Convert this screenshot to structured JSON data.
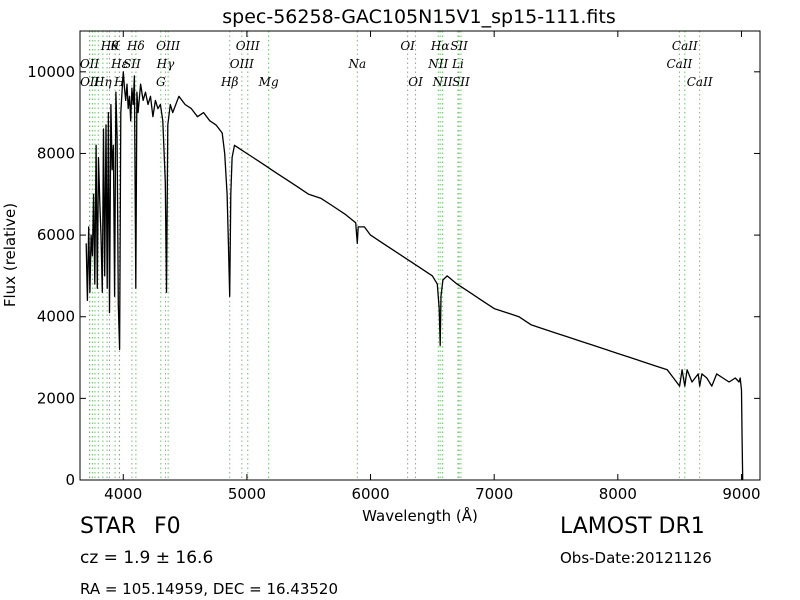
{
  "chart_data": {
    "type": "line",
    "title": "spec-56258-GAC105N15V1_sp15-111.fits",
    "xlabel": "Wavelength (Å)",
    "ylabel": "Flux (relative)",
    "xlim": [
      3650,
      9150
    ],
    "ylim": [
      0,
      11000
    ],
    "xticks": [
      4000,
      5000,
      6000,
      7000,
      8000,
      9000
    ],
    "yticks": [
      0,
      2000,
      4000,
      6000,
      8000,
      10000
    ],
    "grid": false,
    "series": [
      {
        "x": [
          3700,
          3710,
          3720,
          3730,
          3740,
          3750,
          3760,
          3770,
          3780,
          3790,
          3800,
          3810,
          3820,
          3830,
          3840,
          3850,
          3860,
          3870,
          3880,
          3889,
          3900,
          3910,
          3920,
          3930,
          3940,
          3950,
          3960,
          3970,
          3980,
          3990,
          4000,
          4010,
          4020,
          4030,
          4040,
          4050,
          4060,
          4070,
          4080,
          4090,
          4101,
          4110,
          4120,
          4140,
          4160,
          4180,
          4200,
          4220,
          4240,
          4260,
          4280,
          4300,
          4320,
          4340,
          4350,
          4360,
          4380,
          4400,
          4450,
          4500,
          4550,
          4600,
          4650,
          4700,
          4750,
          4800,
          4820,
          4840,
          4850,
          4861,
          4870,
          4880,
          4900,
          4950,
          5000,
          5050,
          5100,
          5150,
          5200,
          5250,
          5300,
          5400,
          5500,
          5600,
          5700,
          5800,
          5880,
          5893,
          5900,
          5950,
          6000,
          6100,
          6200,
          6300,
          6400,
          6500,
          6540,
          6555,
          6563,
          6570,
          6585,
          6620,
          6700,
          6800,
          6900,
          7000,
          7100,
          7200,
          7300,
          7400,
          7500,
          7600,
          7700,
          7800,
          7900,
          8000,
          8100,
          8200,
          8300,
          8400,
          8450,
          8500,
          8520,
          8542,
          8560,
          8600,
          8650,
          8662,
          8680,
          8720,
          8760,
          8800,
          8850,
          8900,
          8950,
          8980,
          8990,
          9000,
          9005,
          9010
        ],
        "y": [
          5800,
          4400,
          6200,
          4600,
          6000,
          5500,
          7000,
          4800,
          8200,
          4700,
          7900,
          6800,
          6000,
          4600,
          8600,
          5000,
          8700,
          4700,
          9000,
          4100,
          9200,
          7600,
          8200,
          4500,
          9500,
          8400,
          4300,
          3200,
          9000,
          9500,
          10000,
          9600,
          9300,
          9700,
          9100,
          9400,
          8800,
          9600,
          9200,
          9900,
          4700,
          9500,
          9000,
          9700,
          9300,
          9500,
          9200,
          9400,
          8900,
          9300,
          9100,
          9200,
          8800,
          7300,
          4600,
          8700,
          9200,
          9000,
          9400,
          9200,
          9100,
          8900,
          9000,
          8800,
          8700,
          8500,
          8000,
          7000,
          5800,
          4500,
          7000,
          7900,
          8200,
          8100,
          8000,
          7900,
          7800,
          7700,
          7600,
          7500,
          7400,
          7200,
          7000,
          6900,
          6700,
          6500,
          6300,
          5800,
          6200,
          6200,
          6000,
          5800,
          5600,
          5400,
          5200,
          5000,
          4800,
          4200,
          3300,
          4500,
          4900,
          5000,
          4800,
          4600,
          4400,
          4200,
          4100,
          4000,
          3800,
          3700,
          3600,
          3500,
          3400,
          3300,
          3200,
          3100,
          3000,
          2900,
          2800,
          2700,
          2500,
          2300,
          2700,
          2300,
          2700,
          2400,
          2600,
          2300,
          2600,
          2500,
          2300,
          2600,
          2500,
          2400,
          2500,
          2400,
          2500,
          2200,
          1000,
          0
        ]
      }
    ],
    "lines": [
      {
        "wl": 3727,
        "label": "OII",
        "row": 1
      },
      {
        "wl": 3729,
        "label": "OII",
        "row": 2
      },
      {
        "wl": 3750,
        "label": "",
        "row": 0
      },
      {
        "wl": 3771,
        "label": "",
        "row": 0
      },
      {
        "wl": 3798,
        "label": "",
        "row": 0
      },
      {
        "wl": 3835,
        "label": "Hη",
        "row": 2
      },
      {
        "wl": 3869,
        "label": "",
        "row": 0
      },
      {
        "wl": 3889,
        "label": "Hθ",
        "row": 0
      },
      {
        "wl": 3934,
        "label": "K",
        "row": 0
      },
      {
        "wl": 3970,
        "label": "Hε",
        "row": 1
      },
      {
        "wl": 3968,
        "label": "H",
        "row": 2
      },
      {
        "wl": 4070,
        "label": "SII",
        "row": 1
      },
      {
        "wl": 4102,
        "label": "Hδ",
        "row": 0
      },
      {
        "wl": 4304,
        "label": "G",
        "row": 2
      },
      {
        "wl": 4341,
        "label": "Hγ",
        "row": 1
      },
      {
        "wl": 4363,
        "label": "OIII",
        "row": 0
      },
      {
        "wl": 4861,
        "label": "Hβ",
        "row": 2
      },
      {
        "wl": 4959,
        "label": "OIII",
        "row": 1
      },
      {
        "wl": 5007,
        "label": "OIII",
        "row": 0
      },
      {
        "wl": 5176,
        "label": "Mg",
        "row": 2
      },
      {
        "wl": 5893,
        "label": "Na",
        "row": 1
      },
      {
        "wl": 6300,
        "label": "OI",
        "row": 0
      },
      {
        "wl": 6364,
        "label": "OI",
        "row": 2
      },
      {
        "wl": 6548,
        "label": "NII",
        "row": 1
      },
      {
        "wl": 6563,
        "label": "Hα",
        "row": 0
      },
      {
        "wl": 6583,
        "label": "NII",
        "row": 2
      },
      {
        "wl": 6707,
        "label": "Li",
        "row": 1
      },
      {
        "wl": 6716,
        "label": "SII",
        "row": 0
      },
      {
        "wl": 6731,
        "label": "SII",
        "row": 2
      },
      {
        "wl": 8498,
        "label": "CaII",
        "row": 1
      },
      {
        "wl": 8542,
        "label": "CaII",
        "row": 0
      },
      {
        "wl": 8662,
        "label": "CaII",
        "row": 2
      }
    ]
  },
  "info": {
    "class_label": "STAR",
    "subclass_label": "F0",
    "cz_text": "cz = 1.9 ± 16.6",
    "radec_text": "RA = 105.14959, DEC = 16.43520",
    "survey": "LAMOST DR1",
    "obs_date": "Obs-Date:20121126"
  }
}
